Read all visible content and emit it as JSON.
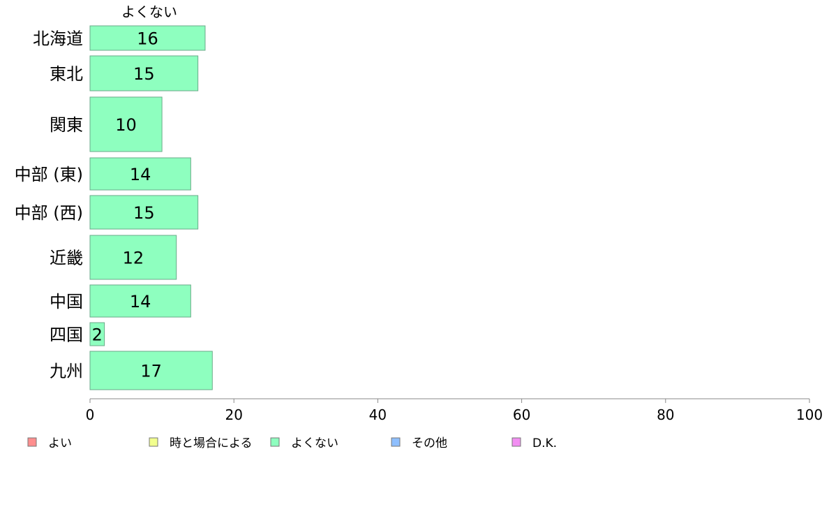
{
  "chart_data": {
    "type": "bar",
    "orientation": "horizontal",
    "series_title": "よくない",
    "categories": [
      "北海道",
      "東北",
      "関東",
      "中部 (東)",
      "中部 (西)",
      "近畿",
      "中国",
      "四国",
      "九州"
    ],
    "series": [
      {
        "name": "よくない",
        "values": [
          16,
          15,
          10,
          14,
          15,
          12,
          14,
          2,
          17
        ],
        "color": "#8effbf"
      }
    ],
    "bar_border_color": "#6aaa88",
    "xlim": [
      0,
      100
    ],
    "xticks": [
      0,
      20,
      40,
      60,
      80,
      100
    ],
    "grid": false,
    "legend": {
      "position": "bottom",
      "entries": [
        {
          "label": "よい",
          "color": "#ff8e8e"
        },
        {
          "label": "時と場合による",
          "color": "#f2ff8e"
        },
        {
          "label": "よくない",
          "color": "#8effbf"
        },
        {
          "label": "その他",
          "color": "#8ebfff"
        },
        {
          "label": "D.K.",
          "color": "#f28ef2"
        }
      ]
    }
  }
}
